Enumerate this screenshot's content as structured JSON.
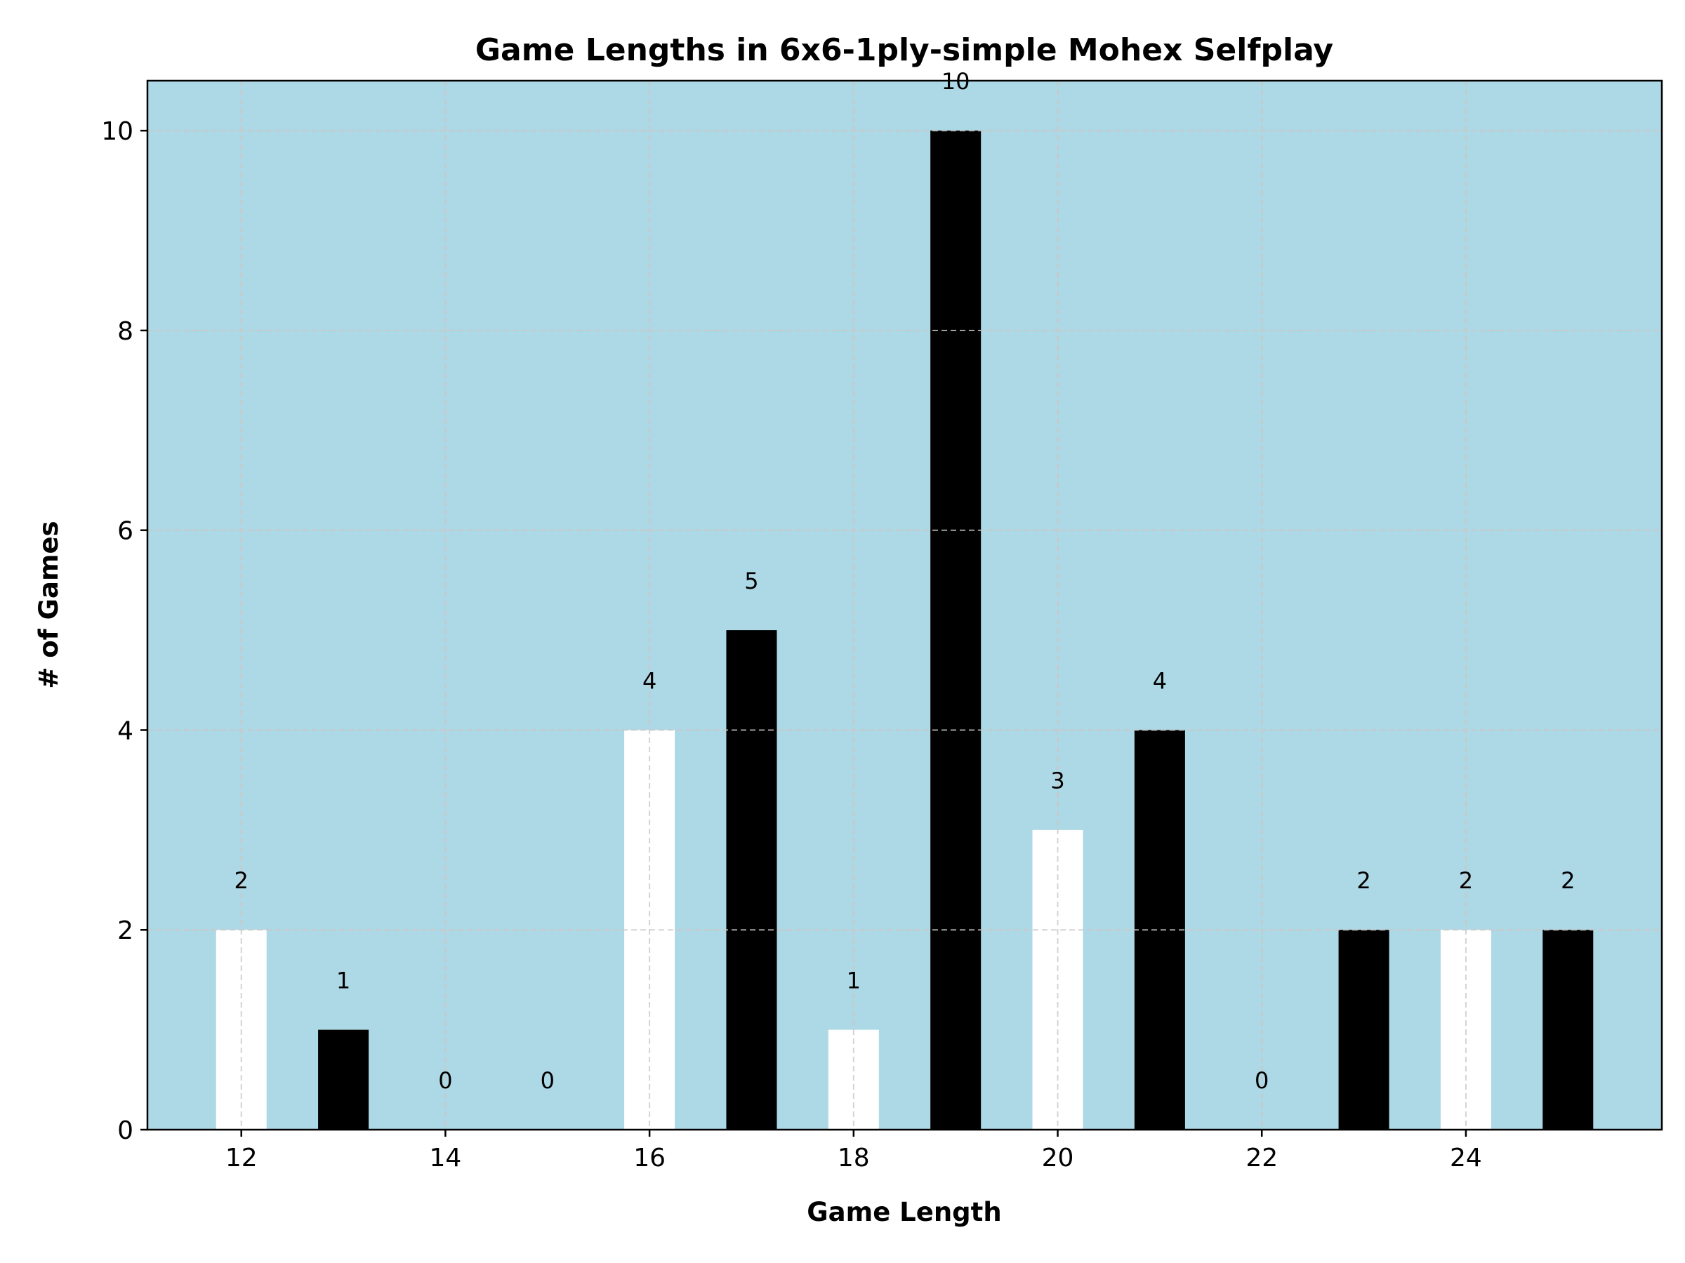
{
  "chart_data": {
    "type": "bar",
    "title": "Game Lengths in 6x6-1ply-simple Mohex Selfplay",
    "xlabel": "Game Length",
    "ylabel": "# of Games",
    "x": [
      12,
      13,
      14,
      15,
      16,
      17,
      18,
      19,
      20,
      21,
      22,
      23,
      24,
      25
    ],
    "values": [
      2,
      1,
      0,
      0,
      4,
      5,
      1,
      10,
      3,
      4,
      0,
      2,
      2,
      2
    ],
    "bar_colors": [
      "#ffffff",
      "#000000",
      "#ffffff",
      "#000000",
      "#ffffff",
      "#000000",
      "#ffffff",
      "#000000",
      "#ffffff",
      "#000000",
      "#ffffff",
      "#000000",
      "#ffffff",
      "#000000"
    ],
    "data_labels": [
      "2",
      "1",
      "0",
      "0",
      "4",
      "5",
      "1",
      "10",
      "3",
      "4",
      "0",
      "2",
      "2",
      "2"
    ],
    "xticks": [
      12,
      14,
      16,
      18,
      20,
      22,
      24
    ],
    "yticks": [
      0,
      2,
      4,
      6,
      8,
      10
    ],
    "xlim": [
      11.08,
      25.92
    ],
    "ylim": [
      0,
      10.5
    ],
    "grid": true,
    "background_color": "#add8e6"
  }
}
